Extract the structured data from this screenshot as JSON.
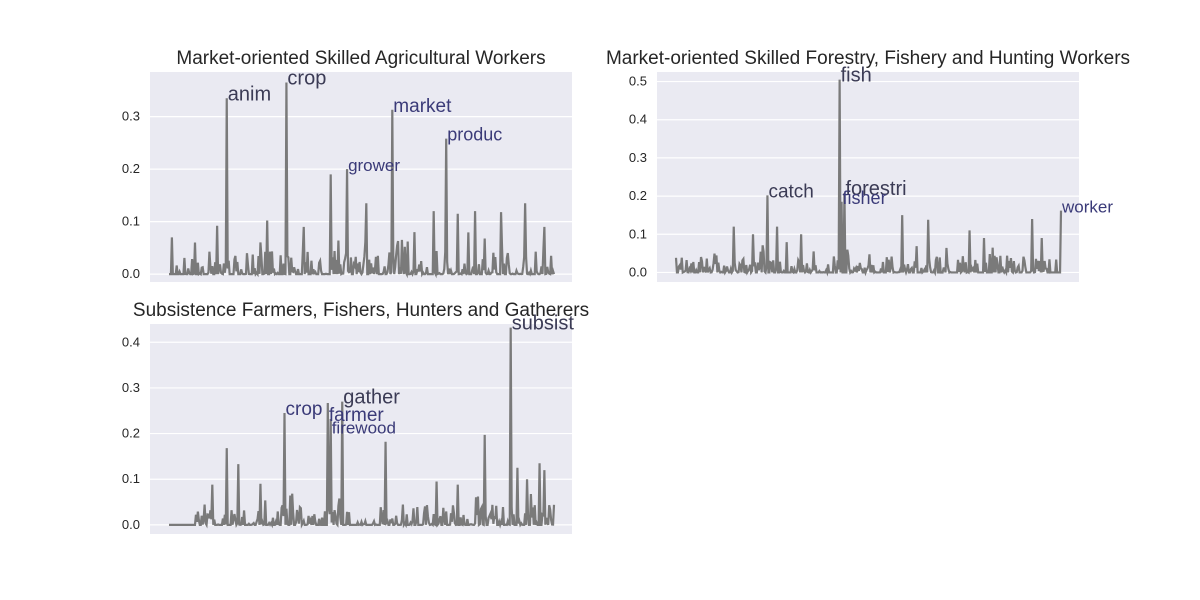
{
  "chart_data": [
    {
      "type": "line",
      "title": "Market-oriented Skilled Agricultural Workers",
      "xlabel": "",
      "ylabel": "",
      "ylim": [
        -0.015,
        0.385
      ],
      "yticks": [
        0.0,
        0.1,
        0.2,
        0.3
      ],
      "ytick_labels": [
        "0.0",
        "0.1",
        "0.2",
        "0.3"
      ],
      "grid": true,
      "line_color": "#7a7a7a",
      "n_points": 400,
      "flat_until": 8,
      "peaks": [
        {
          "i": 60,
          "v": 0.335
        },
        {
          "i": 122,
          "v": 0.365
        },
        {
          "i": 185,
          "v": 0.2
        },
        {
          "i": 232,
          "v": 0.313
        },
        {
          "i": 288,
          "v": 0.258
        },
        {
          "i": 168,
          "v": 0.19
        },
        {
          "i": 205,
          "v": 0.135
        },
        {
          "i": 3,
          "v": 0.07
        },
        {
          "i": 50,
          "v": 0.092
        },
        {
          "i": 345,
          "v": 0.118
        },
        {
          "i": 390,
          "v": 0.09
        },
        {
          "i": 370,
          "v": 0.135
        },
        {
          "i": 318,
          "v": 0.12
        },
        {
          "i": 102,
          "v": 0.102
        },
        {
          "i": 140,
          "v": 0.09
        },
        {
          "i": 255,
          "v": 0.08
        },
        {
          "i": 275,
          "v": 0.12
        },
        {
          "i": 300,
          "v": 0.115
        }
      ],
      "labels": [
        {
          "text": "anim",
          "i": 60,
          "v": 0.335,
          "size": 20,
          "color": "#3b3b55"
        },
        {
          "text": "crop",
          "i": 122,
          "v": 0.365,
          "size": 20,
          "color": "#3b3b55"
        },
        {
          "text": "market",
          "i": 232,
          "v": 0.313,
          "size": 19,
          "color": "#3a3a78"
        },
        {
          "text": "produc",
          "i": 288,
          "v": 0.258,
          "size": 18,
          "color": "#3a3a78"
        },
        {
          "text": "grower",
          "i": 185,
          "v": 0.2,
          "size": 17,
          "color": "#3a3a78"
        }
      ]
    },
    {
      "type": "line",
      "title": "Market-oriented Skilled Forestry, Fishery and Hunting Workers",
      "xlabel": "",
      "ylabel": "",
      "ylim": [
        -0.025,
        0.525
      ],
      "yticks": [
        0.0,
        0.1,
        0.2,
        0.3,
        0.4,
        0.5
      ],
      "ytick_labels": [
        "0.0",
        "0.1",
        "0.2",
        "0.3",
        "0.4",
        "0.5"
      ],
      "grid": true,
      "line_color": "#7a7a7a",
      "n_points": 400,
      "flat_until": 0,
      "peaks": [
        {
          "i": 170,
          "v": 0.505
        },
        {
          "i": 95,
          "v": 0.202
        },
        {
          "i": 175,
          "v": 0.208
        },
        {
          "i": 172,
          "v": 0.185
        },
        {
          "i": 400,
          "v": 0.162
        },
        {
          "i": 60,
          "v": 0.12
        },
        {
          "i": 105,
          "v": 0.12
        },
        {
          "i": 235,
          "v": 0.15
        },
        {
          "i": 262,
          "v": 0.138
        },
        {
          "i": 305,
          "v": 0.11
        },
        {
          "i": 370,
          "v": 0.14
        },
        {
          "i": 80,
          "v": 0.1
        },
        {
          "i": 130,
          "v": 0.1
        },
        {
          "i": 320,
          "v": 0.09
        },
        {
          "i": 380,
          "v": 0.09
        }
      ],
      "labels": [
        {
          "text": "fish",
          "i": 170,
          "v": 0.505,
          "size": 20,
          "color": "#3b3b55"
        },
        {
          "text": "catch",
          "i": 95,
          "v": 0.202,
          "size": 19,
          "color": "#3b3b55"
        },
        {
          "text": "forestri",
          "i": 175,
          "v": 0.208,
          "size": 20,
          "color": "#3b3b55"
        },
        {
          "text": "fisher",
          "i": 172,
          "v": 0.185,
          "size": 18,
          "color": "#3a3a78"
        },
        {
          "text": "worker",
          "i": 400,
          "v": 0.162,
          "size": 17,
          "color": "#3a3a78"
        }
      ]
    },
    {
      "type": "line",
      "title": "Subsistence Farmers, Fishers, Hunters and Gatherers",
      "xlabel": "",
      "ylabel": "",
      "ylim": [
        -0.02,
        0.44
      ],
      "yticks": [
        0.0,
        0.1,
        0.2,
        0.3,
        0.4
      ],
      "ytick_labels": [
        "0.0",
        "0.1",
        "0.2",
        "0.3",
        "0.4"
      ],
      "grid": true,
      "line_color": "#7a7a7a",
      "n_points": 400,
      "flat_until": 28,
      "peaks": [
        {
          "i": 355,
          "v": 0.432
        },
        {
          "i": 120,
          "v": 0.245
        },
        {
          "i": 165,
          "v": 0.267
        },
        {
          "i": 180,
          "v": 0.27
        },
        {
          "i": 168,
          "v": 0.232
        },
        {
          "i": 225,
          "v": 0.182
        },
        {
          "i": 328,
          "v": 0.197
        },
        {
          "i": 60,
          "v": 0.168
        },
        {
          "i": 72,
          "v": 0.133
        },
        {
          "i": 385,
          "v": 0.135
        },
        {
          "i": 390,
          "v": 0.12
        },
        {
          "i": 362,
          "v": 0.125
        },
        {
          "i": 45,
          "v": 0.088
        },
        {
          "i": 95,
          "v": 0.09
        },
        {
          "i": 278,
          "v": 0.095
        },
        {
          "i": 300,
          "v": 0.088
        },
        {
          "i": 372,
          "v": 0.1
        }
      ],
      "labels": [
        {
          "text": "subsist",
          "i": 355,
          "v": 0.432,
          "size": 20,
          "color": "#3b3b55"
        },
        {
          "text": "crop",
          "i": 120,
          "v": 0.245,
          "size": 19,
          "color": "#3a3a78"
        },
        {
          "text": "farmer",
          "i": 165,
          "v": 0.232,
          "size": 19,
          "color": "#3a3a78"
        },
        {
          "text": "gather",
          "i": 180,
          "v": 0.27,
          "size": 20,
          "color": "#3b3b55"
        },
        {
          "text": "firewood",
          "i": 168,
          "v": 0.205,
          "size": 17,
          "color": "#3a3a78"
        }
      ]
    }
  ]
}
